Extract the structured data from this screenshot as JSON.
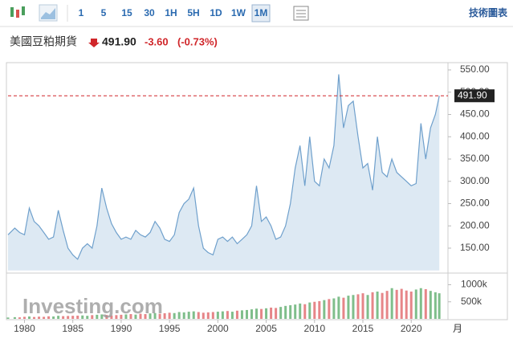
{
  "toolbar": {
    "intervals": [
      "1",
      "5",
      "15",
      "30",
      "1H",
      "5H",
      "1D",
      "1W",
      "1M"
    ],
    "selected": 8,
    "advanced": "技術圖表"
  },
  "header": {
    "name": "美國豆粕期貨",
    "change": "-3.60",
    "change_pct": "(-0.73%)"
  },
  "chart_data": {
    "type": "line",
    "watermark": "Investing.com",
    "x_unit": "月",
    "last": {
      "value": 491.9,
      "label": "491.90"
    },
    "color": "#6fa0cc",
    "fill": "#dde9f3",
    "up_color": "#5fae6e",
    "down_color": "#e0676a",
    "xlim": [
      1978.3,
      2023.8
    ],
    "xticks": [
      1980,
      1985,
      1990,
      1995,
      2000,
      2005,
      2010,
      2015,
      2020
    ],
    "ylim": [
      100,
      565
    ],
    "yticks": [
      {
        "value": 150,
        "label": "150.00"
      },
      {
        "value": 200,
        "label": "200.00"
      },
      {
        "value": 250,
        "label": "250.00"
      },
      {
        "value": 300,
        "label": "300.00"
      },
      {
        "value": 350,
        "label": "350.00"
      },
      {
        "value": 400,
        "label": "400.00"
      },
      {
        "value": 450,
        "label": "450.00"
      },
      {
        "value": 500,
        "label": "500.00"
      },
      {
        "value": 550,
        "label": "550.00"
      }
    ],
    "x": [
      1978.3,
      1979,
      1979.5,
      1980,
      1980.5,
      1981,
      1981.5,
      1982,
      1982.5,
      1983,
      1983.5,
      1984,
      1984.5,
      1985,
      1985.5,
      1986,
      1986.5,
      1987,
      1987.5,
      1988,
      1988.5,
      1989,
      1989.5,
      1990,
      1990.5,
      1991,
      1991.5,
      1992,
      1992.5,
      1993,
      1993.5,
      1994,
      1994.5,
      1995,
      1995.5,
      1996,
      1996.5,
      1997,
      1997.5,
      1998,
      1998.5,
      1999,
      1999.5,
      2000,
      2000.5,
      2001,
      2001.5,
      2002,
      2002.5,
      2003,
      2003.5,
      2004,
      2004.5,
      2005,
      2005.5,
      2006,
      2006.5,
      2007,
      2007.5,
      2008,
      2008.5,
      2009,
      2009.5,
      2010,
      2010.5,
      2011,
      2011.5,
      2012,
      2012.5,
      2013,
      2013.5,
      2014,
      2014.5,
      2015,
      2015.5,
      2016,
      2016.5,
      2017,
      2017.5,
      2018,
      2018.5,
      2019,
      2019.5,
      2020,
      2020.5,
      2021,
      2021.5,
      2022,
      2022.5,
      2022.9
    ],
    "values": [
      180,
      195,
      185,
      180,
      240,
      210,
      200,
      185,
      170,
      175,
      235,
      190,
      150,
      135,
      125,
      150,
      160,
      150,
      200,
      285,
      240,
      205,
      185,
      170,
      175,
      170,
      190,
      180,
      175,
      185,
      210,
      195,
      170,
      165,
      180,
      230,
      250,
      260,
      285,
      200,
      150,
      140,
      135,
      170,
      175,
      165,
      175,
      160,
      170,
      180,
      200,
      290,
      210,
      220,
      200,
      170,
      175,
      200,
      250,
      330,
      380,
      290,
      400,
      300,
      290,
      350,
      330,
      380,
      540,
      420,
      470,
      480,
      400,
      330,
      340,
      280,
      400,
      320,
      310,
      350,
      320,
      310,
      300,
      290,
      295,
      430,
      350,
      420,
      450,
      491.9
    ],
    "volume": {
      "ylim": [
        0,
        1200000
      ],
      "yticks": [
        {
          "value": 500000,
          "label": "500k"
        },
        {
          "value": 1000000,
          "label": "1000k"
        }
      ],
      "values": [
        40000,
        50000,
        45000,
        60000,
        70000,
        55000,
        65000,
        60000,
        75000,
        70000,
        90000,
        80000,
        85000,
        90000,
        95000,
        100000,
        90000,
        110000,
        120000,
        130000,
        115000,
        100000,
        110000,
        120000,
        130000,
        140000,
        125000,
        150000,
        140000,
        160000,
        170000,
        150000,
        165000,
        180000,
        170000,
        200000,
        190000,
        210000,
        220000,
        200000,
        180000,
        190000,
        200000,
        210000,
        220000,
        230000,
        210000,
        240000,
        250000,
        260000,
        280000,
        300000,
        290000,
        310000,
        330000,
        320000,
        350000,
        380000,
        400000,
        420000,
        450000,
        430000,
        480000,
        500000,
        520000,
        550000,
        580000,
        600000,
        650000,
        620000,
        680000,
        700000,
        720000,
        750000,
        700000,
        780000,
        800000,
        760000,
        820000,
        900000,
        850000,
        880000,
        830000,
        800000,
        860000,
        900000,
        870000,
        820000,
        780000,
        750000
      ]
    }
  }
}
